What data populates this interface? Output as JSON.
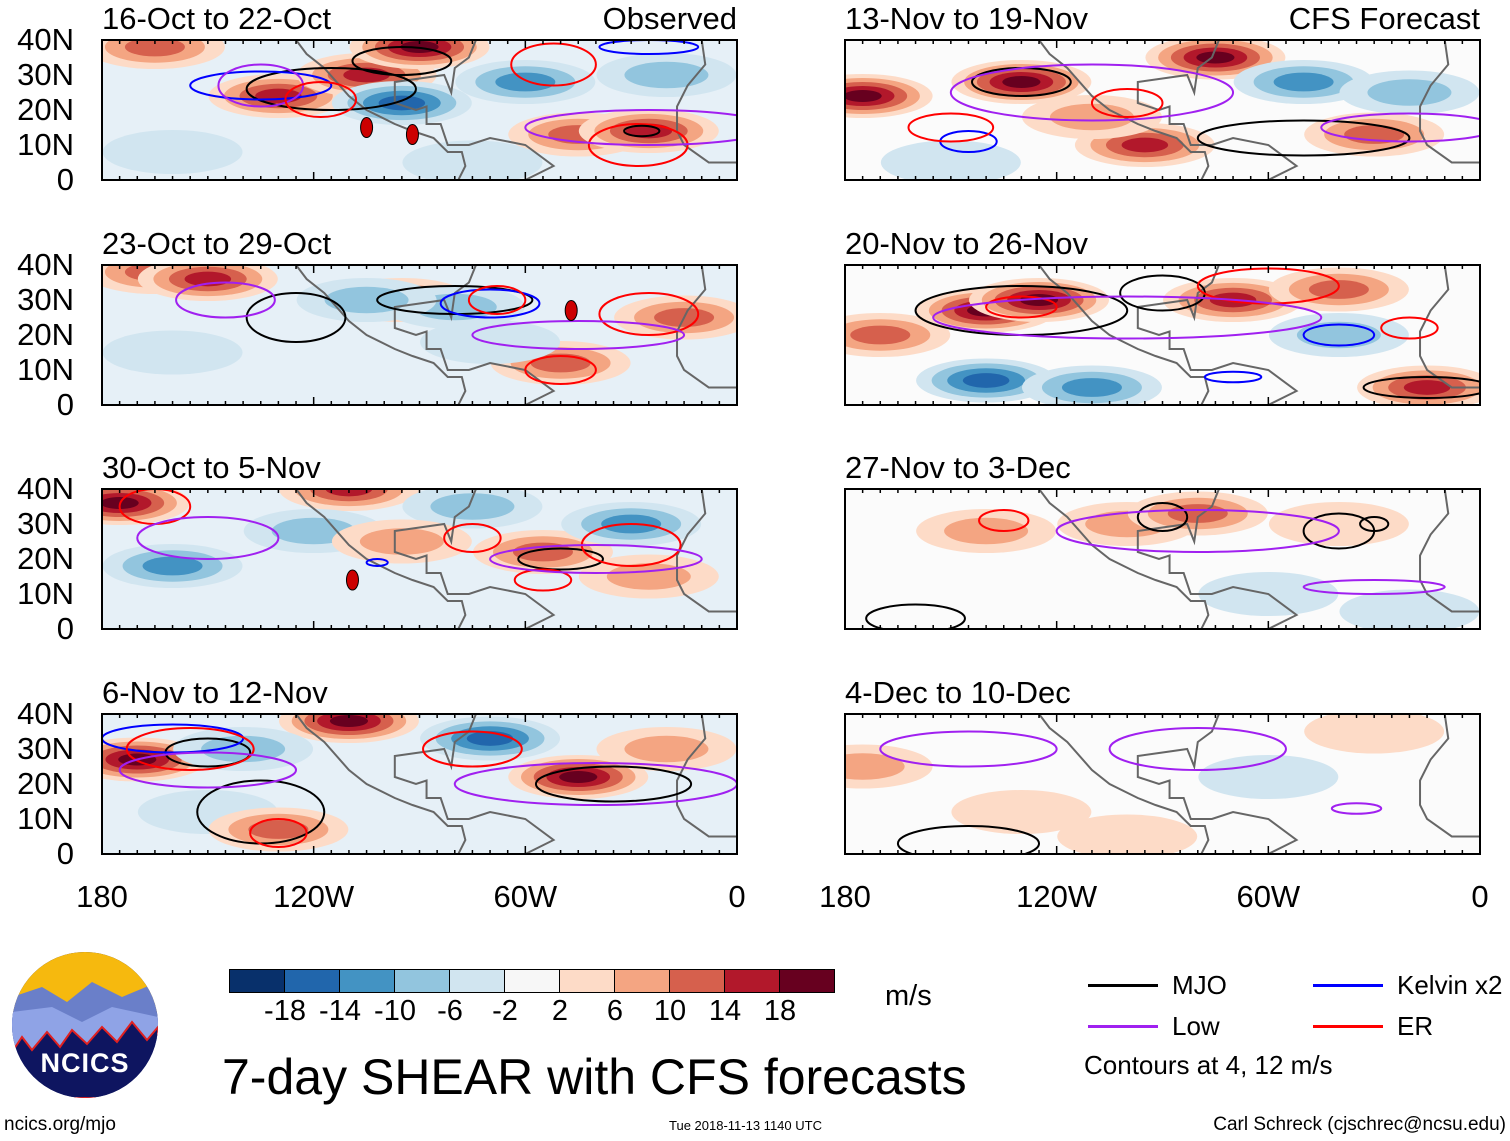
{
  "panels": [
    {
      "id": "p1",
      "title": "16-Oct to 22-Oct",
      "right_label": "Observed",
      "blobs": [
        [
          -165,
          38,
          10
        ],
        [
          -130,
          24,
          14
        ],
        [
          -105,
          30,
          14
        ],
        [
          -90,
          38,
          18
        ],
        [
          -95,
          22,
          -14
        ],
        [
          -60,
          28,
          -10
        ],
        [
          -45,
          13,
          10
        ],
        [
          -25,
          14,
          14
        ],
        [
          -160,
          8,
          -4
        ],
        [
          -75,
          5,
          -4
        ],
        [
          -20,
          30,
          -6
        ]
      ],
      "contours": [
        [
          "MJO",
          -115,
          26,
          24,
          6
        ],
        [
          "MJO",
          -95,
          34,
          14,
          4
        ],
        [
          "Kelvin",
          -135,
          27,
          20,
          4
        ],
        [
          "Low",
          -135,
          27,
          12,
          6
        ],
        [
          "ER",
          -118,
          23,
          10,
          5
        ],
        [
          "ER",
          -52,
          33,
          12,
          6
        ],
        [
          "ER",
          -28,
          10,
          14,
          6
        ],
        [
          "Low",
          -25,
          15,
          35,
          5
        ],
        [
          "MJO",
          -27,
          14,
          5,
          1.5
        ],
        [
          "Kelvin",
          -25,
          38,
          14,
          2
        ]
      ],
      "storms": [
        [
          -105,
          15
        ],
        [
          -92,
          13
        ]
      ]
    },
    {
      "id": "p2",
      "title": "23-Oct to 29-Oct",
      "right_label": "",
      "blobs": [
        [
          -165,
          38,
          10
        ],
        [
          -150,
          36,
          14
        ],
        [
          -95,
          30,
          10
        ],
        [
          -80,
          28,
          -6
        ],
        [
          -105,
          30,
          -6
        ],
        [
          -15,
          25,
          10
        ],
        [
          -50,
          12,
          10
        ],
        [
          -160,
          15,
          -2
        ],
        [
          -70,
          18,
          -4
        ]
      ],
      "contours": [
        [
          "MJO",
          -80,
          30,
          22,
          4
        ],
        [
          "MJO",
          -125,
          25,
          14,
          7
        ],
        [
          "Kelvin",
          -70,
          29,
          14,
          4
        ],
        [
          "ER",
          -68,
          30,
          8,
          4
        ],
        [
          "ER",
          -50,
          10,
          10,
          4
        ],
        [
          "ER",
          -25,
          26,
          14,
          6
        ],
        [
          "Low",
          -145,
          30,
          14,
          5
        ],
        [
          "Low",
          -45,
          20,
          30,
          4
        ]
      ],
      "storms": [
        [
          -47,
          27
        ]
      ]
    },
    {
      "id": "p3",
      "title": "30-Oct to 5-Nov",
      "right_label": "",
      "blobs": [
        [
          -175,
          36,
          18
        ],
        [
          -110,
          40,
          14
        ],
        [
          -55,
          22,
          12
        ],
        [
          -30,
          30,
          -10
        ],
        [
          -160,
          18,
          -10
        ],
        [
          -120,
          28,
          -6
        ],
        [
          -75,
          35,
          -6
        ],
        [
          -25,
          15,
          6
        ],
        [
          -95,
          25,
          6
        ]
      ],
      "contours": [
        [
          "MJO",
          -50,
          20,
          12,
          3
        ],
        [
          "ER",
          -30,
          24,
          14,
          6
        ],
        [
          "ER",
          -75,
          26,
          8,
          4
        ],
        [
          "ER",
          -165,
          35,
          10,
          5
        ],
        [
          "ER",
          -55,
          14,
          8,
          3
        ],
        [
          "Low",
          -150,
          26,
          20,
          6
        ],
        [
          "Low",
          -40,
          20,
          30,
          4
        ],
        [
          "Kelvin",
          -102,
          19,
          3,
          1
        ]
      ],
      "storms": [
        [
          -109,
          14
        ]
      ]
    },
    {
      "id": "p4",
      "title": "6-Nov to 12-Nov",
      "right_label": "",
      "blobs": [
        [
          -170,
          27,
          18
        ],
        [
          -110,
          38,
          18
        ],
        [
          -45,
          22,
          18
        ],
        [
          -70,
          33,
          -14
        ],
        [
          -150,
          12,
          -2
        ],
        [
          -130,
          7,
          12
        ],
        [
          -20,
          30,
          6
        ],
        [
          -140,
          30,
          -6
        ]
      ],
      "contours": [
        [
          "MJO",
          -35,
          20,
          22,
          5
        ],
        [
          "MJO",
          -150,
          29,
          12,
          4
        ],
        [
          "MJO",
          -135,
          12,
          18,
          9
        ],
        [
          "Kelvin",
          -160,
          33,
          20,
          4
        ],
        [
          "ER",
          -155,
          30,
          18,
          6
        ],
        [
          "ER",
          -130,
          6,
          8,
          4
        ],
        [
          "ER",
          -75,
          30,
          14,
          5
        ],
        [
          "Low",
          -150,
          24,
          25,
          5
        ],
        [
          "Low",
          -40,
          20,
          40,
          6
        ]
      ],
      "storms": []
    },
    {
      "id": "p5",
      "title": "13-Nov to 19-Nov",
      "right_label": "CFS Forecast",
      "blobs": [
        [
          -175,
          24,
          18
        ],
        [
          -130,
          28,
          18
        ],
        [
          -75,
          35,
          18
        ],
        [
          -95,
          10,
          14
        ],
        [
          -50,
          28,
          -10
        ],
        [
          -20,
          25,
          -6
        ],
        [
          -150,
          5,
          -4
        ],
        [
          -30,
          13,
          10
        ],
        [
          -110,
          18,
          6
        ]
      ],
      "contours": [
        [
          "MJO",
          -130,
          28,
          14,
          4
        ],
        [
          "MJO",
          -50,
          12,
          30,
          5
        ],
        [
          "Kelvin",
          -145,
          11,
          8,
          3
        ],
        [
          "ER",
          -150,
          15,
          12,
          4
        ],
        [
          "ER",
          -100,
          22,
          10,
          4
        ],
        [
          "Low",
          -110,
          25,
          40,
          8
        ],
        [
          "Low",
          -20,
          15,
          25,
          4
        ]
      ],
      "storms": []
    },
    {
      "id": "p6",
      "title": "20-Nov to 26-Nov",
      "right_label": "",
      "blobs": [
        [
          -140,
          27,
          18
        ],
        [
          -125,
          30,
          18
        ],
        [
          -70,
          30,
          14
        ],
        [
          -40,
          33,
          10
        ],
        [
          -140,
          7,
          -14
        ],
        [
          -110,
          5,
          -10
        ],
        [
          -40,
          20,
          -6
        ],
        [
          -15,
          5,
          14
        ],
        [
          -170,
          20,
          10
        ]
      ],
      "contours": [
        [
          "MJO",
          -130,
          27,
          30,
          7
        ],
        [
          "MJO",
          -90,
          32,
          12,
          5
        ],
        [
          "MJO",
          -15,
          5,
          18,
          3
        ],
        [
          "Kelvin",
          -40,
          20,
          10,
          3
        ],
        [
          "Kelvin",
          -70,
          8,
          8,
          1.5
        ],
        [
          "ER",
          -130,
          28,
          10,
          3
        ],
        [
          "ER",
          -20,
          22,
          8,
          3
        ],
        [
          "ER",
          -60,
          34,
          20,
          5
        ],
        [
          "Low",
          -100,
          25,
          55,
          6
        ]
      ],
      "storms": []
    },
    {
      "id": "p7",
      "title": "27-Nov to 3-Dec",
      "right_label": "",
      "blobs": [
        [
          -100,
          30,
          6
        ],
        [
          -80,
          33,
          10
        ],
        [
          -140,
          28,
          6
        ],
        [
          -60,
          10,
          -4
        ],
        [
          -40,
          30,
          4
        ],
        [
          -20,
          5,
          -2
        ]
      ],
      "contours": [
        [
          "MJO",
          -90,
          32,
          7,
          4
        ],
        [
          "MJO",
          -40,
          28,
          10,
          5
        ],
        [
          "MJO",
          -30,
          30,
          4,
          2
        ],
        [
          "MJO",
          -160,
          3,
          14,
          4
        ],
        [
          "ER",
          -135,
          31,
          7,
          3
        ],
        [
          "Low",
          -80,
          28,
          40,
          6
        ],
        [
          "Low",
          -30,
          12,
          20,
          2
        ]
      ],
      "storms": []
    },
    {
      "id": "p8",
      "title": "4-Dec to 10-Dec",
      "right_label": "",
      "blobs": [
        [
          -175,
          25,
          6
        ],
        [
          -130,
          12,
          4
        ],
        [
          -60,
          22,
          -4
        ],
        [
          -30,
          35,
          4
        ],
        [
          -100,
          5,
          2
        ]
      ],
      "contours": [
        [
          "MJO",
          -145,
          3,
          20,
          5
        ],
        [
          "Low",
          -145,
          30,
          25,
          5
        ],
        [
          "Low",
          -80,
          30,
          25,
          6
        ],
        [
          "Low",
          -35,
          13,
          7,
          1.5
        ]
      ],
      "storms": []
    }
  ],
  "lat_labels": [
    "40N",
    "30N",
    "20N",
    "10N",
    "0"
  ],
  "lon_labels": [
    "180",
    "120W",
    "60W",
    "0"
  ],
  "colorbar": {
    "colors": [
      "#08306b",
      "#2166ac",
      "#4393c3",
      "#92c5de",
      "#d1e5f0",
      "#f7f7f7",
      "#fddbc7",
      "#f4a582",
      "#d6604d",
      "#b2182b",
      "#67001f"
    ],
    "labels": [
      "-18",
      "-14",
      "-10",
      "-6",
      "-2",
      "2",
      "6",
      "10",
      "14",
      "18"
    ],
    "units": "m/s"
  },
  "legend": {
    "items": [
      {
        "label": "MJO",
        "color": "#000000"
      },
      {
        "label": "Kelvin x2",
        "color": "#0000ff"
      },
      {
        "label": "Low",
        "color": "#a020f0"
      },
      {
        "label": "ER",
        "color": "#ff0000"
      }
    ],
    "note": "Contours at 4, 12 m/s"
  },
  "title": "7-day SHEAR with CFS forecasts",
  "logo_text": "NCICS",
  "footer": {
    "left": "ncics.org/mjo",
    "center": "Tue 2018-11-13 1140 UTC",
    "right": "Carl Schreck (cjschrec@ncsu.edu)"
  }
}
